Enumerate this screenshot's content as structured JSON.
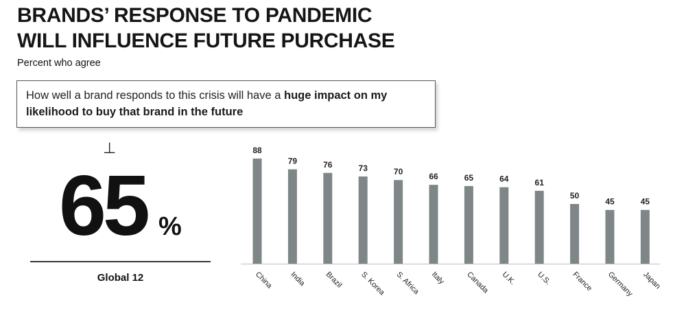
{
  "header": {
    "title_line1": "BRANDS’ RESPONSE TO PANDEMIC",
    "title_line2": "WILL INFLUENCE FUTURE PURCHASE",
    "subtitle": "Percent who agree"
  },
  "statement": {
    "text_regular": "How well a brand responds to this crisis will have a ",
    "text_bold": "huge impact on my likelihood to buy that brand in the future"
  },
  "global": {
    "marker": "⊥",
    "value": "65",
    "unit": "%",
    "label": "Global 12"
  },
  "chart_data": {
    "type": "bar",
    "categories": [
      "China",
      "India",
      "Brazil",
      "S. Korea",
      "S. Africa",
      "Italy",
      "Canada",
      "U.K.",
      "U.S.",
      "France",
      "Germany",
      "Japan"
    ],
    "values": [
      88,
      79,
      76,
      73,
      70,
      66,
      65,
      64,
      61,
      50,
      45,
      45
    ],
    "ylim": [
      0,
      100
    ],
    "grid": false,
    "data_labels": true,
    "bar_color": "#7f8688"
  }
}
